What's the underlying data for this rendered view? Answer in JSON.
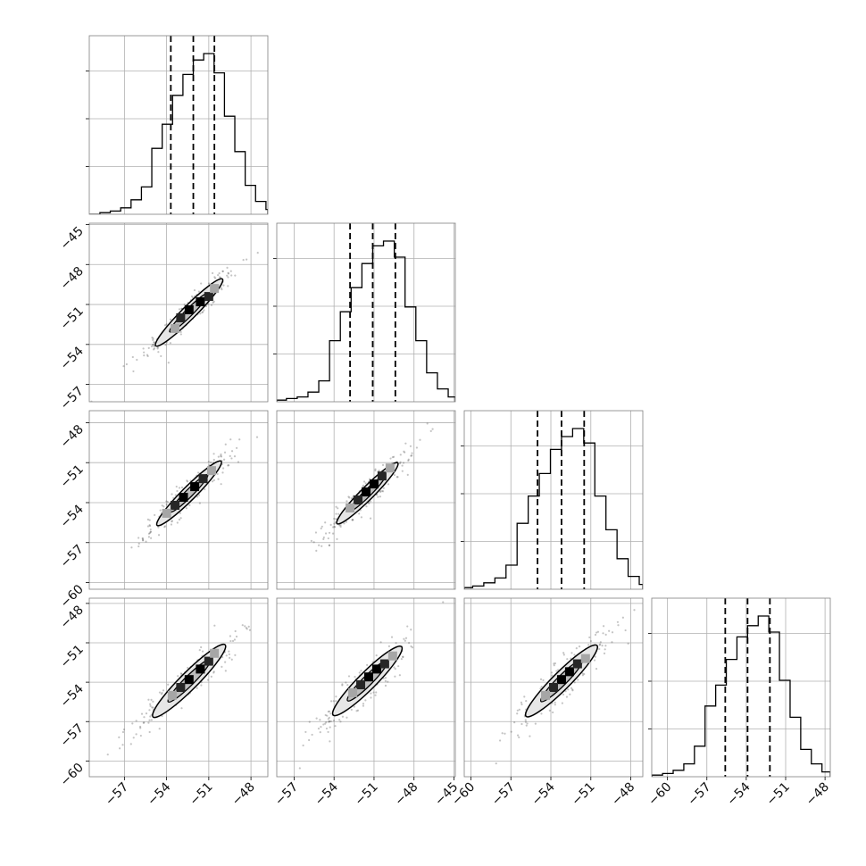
{
  "chart_data": {
    "type": "corner",
    "n_params": 4,
    "axis_ranges": [
      [
        -59.5,
        -46.8
      ],
      [
        -58.3,
        -44.9
      ],
      [
        -60.5,
        -47.1
      ],
      [
        -61.2,
        -47.6
      ]
    ],
    "marginal_x_ticks": [
      {
        "values": [
          -57,
          -54,
          -51,
          -48
        ],
        "labels": [
          "−57",
          "−54",
          "−51",
          "−48"
        ]
      },
      {
        "values": [
          -57,
          -54,
          -51,
          -48,
          -45
        ],
        "labels": [
          "−57",
          "−54",
          "−51",
          "−48",
          "−45"
        ]
      },
      {
        "values": [
          -60,
          -57,
          -54,
          -51,
          -48
        ],
        "labels": [
          "−60",
          "−57",
          "−54",
          "−51",
          "−48"
        ]
      },
      {
        "values": [
          -60,
          -57,
          -54,
          -51,
          -48
        ],
        "labels": [
          "−60",
          "−57",
          "−54",
          "−51",
          "−48"
        ]
      }
    ],
    "y_ticks": [
      null,
      {
        "values": [
          -45,
          -48,
          -51,
          -54,
          -57
        ],
        "labels": [
          "−45",
          "−48",
          "−51",
          "−54",
          "−57"
        ]
      },
      {
        "values": [
          -48,
          -51,
          -54,
          -57,
          -60
        ],
        "labels": [
          "−48",
          "−51",
          "−54",
          "−57",
          "−60"
        ]
      },
      {
        "values": [
          -48,
          -51,
          -54,
          -57,
          -60
        ],
        "labels": [
          "−48",
          "−51",
          "−54",
          "−57",
          "−60"
        ]
      }
    ],
    "quantiles": [
      [
        -53.7,
        -52.1,
        -50.6
      ],
      [
        -52.8,
        -51.1,
        -49.4
      ],
      [
        -55.0,
        -53.2,
        -51.5
      ],
      [
        -55.6,
        -53.9,
        -52.2
      ]
    ],
    "histograms": [
      [
        0.0,
        0.01,
        0.02,
        0.04,
        0.09,
        0.17,
        0.41,
        0.56,
        0.74,
        0.87,
        0.96,
        1.0,
        0.88,
        0.61,
        0.39,
        0.18,
        0.08,
        0.03,
        0.01,
        0.0
      ],
      [
        0.0,
        0.01,
        0.02,
        0.03,
        0.06,
        0.13,
        0.38,
        0.56,
        0.71,
        0.86,
        0.97,
        1.0,
        0.9,
        0.59,
        0.38,
        0.18,
        0.08,
        0.03,
        0.01,
        0.0
      ],
      [
        0.0,
        0.01,
        0.02,
        0.04,
        0.07,
        0.15,
        0.41,
        0.58,
        0.72,
        0.87,
        0.95,
        1.0,
        0.91,
        0.58,
        0.37,
        0.19,
        0.08,
        0.03,
        0.01,
        0.0
      ],
      [
        0.0,
        0.01,
        0.02,
        0.04,
        0.08,
        0.19,
        0.44,
        0.57,
        0.73,
        0.87,
        0.94,
        1.0,
        0.9,
        0.6,
        0.37,
        0.17,
        0.08,
        0.03,
        0.01,
        0.0
      ]
    ],
    "pairs": [
      {
        "row": 1,
        "col": 0,
        "center": [
          -52.4,
          -51.6
        ],
        "spread": 1.25,
        "minor": 0.22,
        "cells": [
          [
            -51.6,
            -50.8,
            1.0
          ],
          [
            -52.4,
            -51.4,
            1.0
          ],
          [
            -51.0,
            -50.4,
            0.85
          ],
          [
            -53.0,
            -52.0,
            0.85
          ],
          [
            -50.6,
            -49.8,
            0.35
          ],
          [
            -53.4,
            -52.8,
            0.35
          ]
        ]
      },
      {
        "row": 2,
        "col": 0,
        "center": [
          -52.4,
          -53.3
        ],
        "spread": 1.2,
        "minor": 0.22,
        "cells": [
          [
            -52.0,
            -52.8,
            1.0
          ],
          [
            -52.8,
            -53.6,
            1.0
          ],
          [
            -51.4,
            -52.2,
            0.85
          ],
          [
            -53.4,
            -54.2,
            0.85
          ],
          [
            -50.8,
            -51.6,
            0.35
          ],
          [
            -54.0,
            -54.8,
            0.35
          ]
        ]
      },
      {
        "row": 2,
        "col": 1,
        "center": [
          -51.5,
          -53.3
        ],
        "spread": 1.2,
        "minor": 0.22,
        "cells": [
          [
            -51.0,
            -52.6,
            1.0
          ],
          [
            -51.6,
            -53.2,
            1.0
          ],
          [
            -50.4,
            -52.0,
            0.85
          ],
          [
            -52.2,
            -53.8,
            0.85
          ],
          [
            -49.8,
            -51.4,
            0.35
          ],
          [
            -52.8,
            -54.4,
            0.35
          ]
        ]
      },
      {
        "row": 3,
        "col": 0,
        "center": [
          -52.4,
          -53.9
        ],
        "spread": 1.35,
        "minor": 0.28,
        "cells": [
          [
            -51.6,
            -53.0,
            1.0
          ],
          [
            -52.4,
            -53.8,
            1.0
          ],
          [
            -51.0,
            -52.4,
            0.85
          ],
          [
            -53.0,
            -54.4,
            0.85
          ],
          [
            -50.6,
            -51.8,
            0.35
          ],
          [
            -53.6,
            -55.0,
            0.35
          ]
        ]
      },
      {
        "row": 3,
        "col": 1,
        "center": [
          -51.5,
          -53.9
        ],
        "spread": 1.35,
        "minor": 0.3,
        "cells": [
          [
            -50.8,
            -53.0,
            1.0
          ],
          [
            -51.4,
            -53.6,
            1.0
          ],
          [
            -50.2,
            -52.6,
            0.85
          ],
          [
            -52.0,
            -54.2,
            0.85
          ],
          [
            -49.6,
            -52.0,
            0.35
          ],
          [
            -52.6,
            -54.8,
            0.35
          ]
        ]
      },
      {
        "row": 3,
        "col": 2,
        "center": [
          -53.2,
          -53.9
        ],
        "spread": 1.4,
        "minor": 0.3,
        "cells": [
          [
            -52.6,
            -53.2,
            1.0
          ],
          [
            -53.2,
            -53.8,
            1.0
          ],
          [
            -52.0,
            -52.6,
            0.85
          ],
          [
            -53.8,
            -54.4,
            0.85
          ],
          [
            -51.4,
            -52.2,
            0.35
          ],
          [
            -54.4,
            -55.0,
            0.35
          ]
        ]
      }
    ],
    "colors": {
      "frame": "#7f7f7f",
      "grid": "#b0b0b0",
      "line": "#000000",
      "scatter": "#555555",
      "fill_outer": "#e6e6e6",
      "fill_inner": "#bdbdbd"
    },
    "grid": true,
    "legend": "none"
  }
}
